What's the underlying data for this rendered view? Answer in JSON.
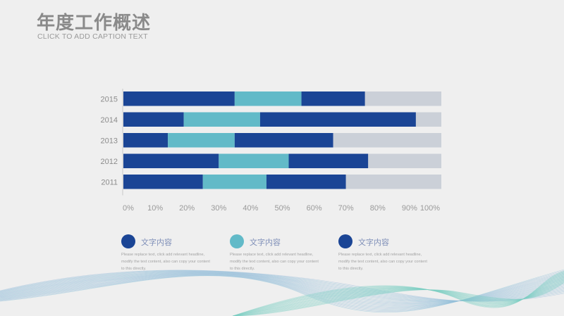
{
  "header": {
    "title": "年度工作概述",
    "caption": "CLICK TO ADD CAPTION TEXT"
  },
  "chart_data": {
    "type": "bar",
    "orientation": "horizontal",
    "stacked": true,
    "categories": [
      "2015",
      "2014",
      "2013",
      "2012",
      "2011"
    ],
    "series": [
      {
        "color": "#1b4595",
        "values": [
          35,
          19,
          14,
          30,
          25
        ]
      },
      {
        "color": "#62bac8",
        "values": [
          21,
          24,
          21,
          22,
          20
        ]
      },
      {
        "color": "#1b4595",
        "values": [
          20,
          49,
          31,
          25,
          25
        ]
      },
      {
        "color": "#cbd0d8",
        "values": [
          24,
          8,
          34,
          23,
          30
        ]
      }
    ],
    "x_ticks": [
      "0%",
      "10%",
      "20%",
      "30%",
      "40%",
      "50%",
      "60%",
      "70%",
      "80%",
      "90%",
      "100%"
    ],
    "xlim": [
      0,
      100
    ],
    "grid": false
  },
  "legend": [
    {
      "title": "文字内容",
      "color": "#1b4595",
      "body": "Please replace text, click add relevant headline, modify the text content, also can copy your content to this directly."
    },
    {
      "title": "文字内容",
      "color": "#62bac8",
      "body": "Please replace text, click add relevant headline, modify the text content, also can copy your content to this directly."
    },
    {
      "title": "文字内容",
      "color": "#1b4595",
      "body": "Please replace text, click add relevant headline, modify the text content, also can copy your content to this directly."
    }
  ]
}
